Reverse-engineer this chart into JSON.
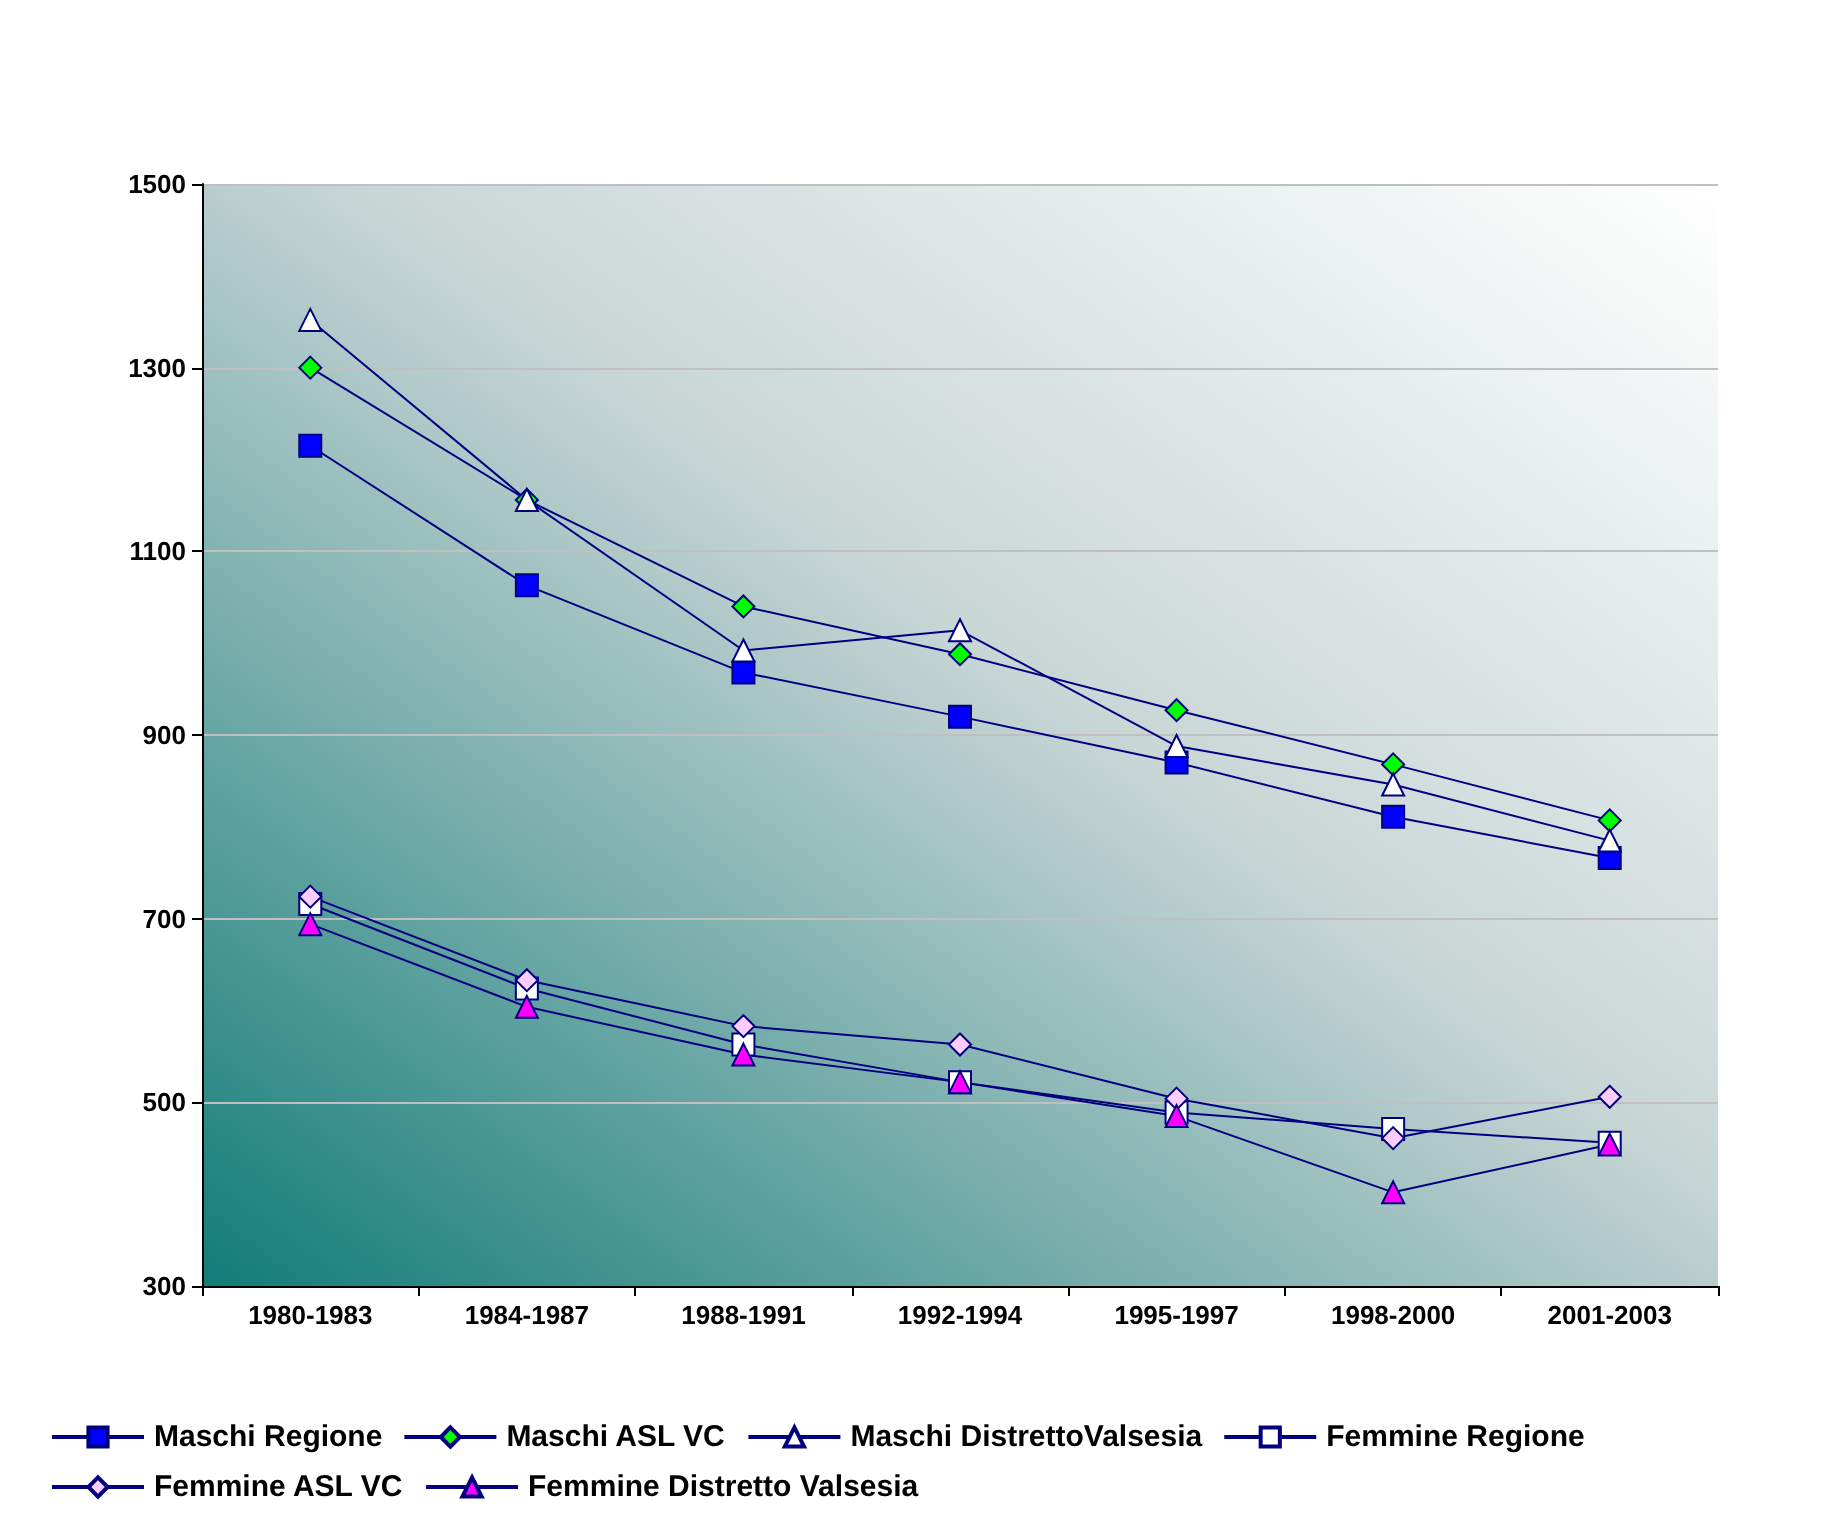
{
  "chart_data": {
    "type": "line",
    "categories": [
      "1980-1983",
      "1984-1987",
      "1988-1991",
      "1992-1994",
      "1995-1997",
      "1998-2000",
      "2001-2003"
    ],
    "series": [
      {
        "name": "Maschi Regione",
        "color": "#0000ff",
        "marker": "square",
        "values": [
          1215,
          1063,
          968,
          920,
          870,
          811,
          766
        ]
      },
      {
        "name": "Maschi ASL VC",
        "color": "#00ff00",
        "marker": "diamond",
        "values": [
          1300,
          1156,
          1040,
          988,
          927,
          868,
          807
        ]
      },
      {
        "name": "Maschi DistrettoValsesia",
        "color": "#ffffff",
        "marker": "triangle",
        "values": [
          1352,
          1156,
          992,
          1014,
          888,
          846,
          785
        ]
      },
      {
        "name": "Femmine Regione",
        "color": "#ffffff",
        "marker": "square",
        "values": [
          716,
          624,
          563,
          522,
          489,
          471,
          456
        ]
      },
      {
        "name": "Femmine ASL VC",
        "color": "#ffccff",
        "marker": "diamond",
        "values": [
          724,
          633,
          583,
          563,
          504,
          461,
          506
        ]
      },
      {
        "name": "Femmine Distretto Valsesia",
        "color": "#ff00ff",
        "marker": "triangle",
        "values": [
          694,
          604,
          552,
          522,
          485,
          402,
          454
        ]
      }
    ],
    "ylim": [
      300,
      1500
    ],
    "yticks": [
      300,
      500,
      700,
      900,
      1100,
      1300,
      1500
    ],
    "grid": "y",
    "legend": "bottom",
    "line_style": "solid"
  }
}
